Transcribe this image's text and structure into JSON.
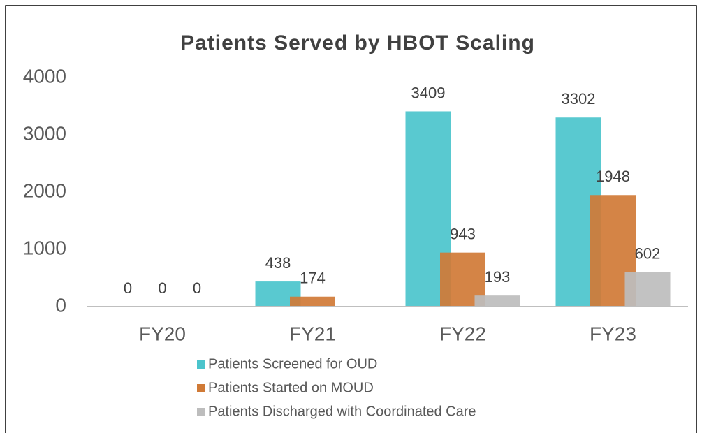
{
  "chart_data": {
    "type": "bar",
    "title": "Patients Served by HBOT Scaling",
    "categories": [
      "FY20",
      "FY21",
      "FY22",
      "FY23"
    ],
    "series": [
      {
        "name": "Patients Screened for OUD",
        "color": "#4bc4cc",
        "values": [
          0,
          438,
          3409,
          3302
        ]
      },
      {
        "name": "Patients Started on MOUD",
        "color": "#d07a36",
        "values": [
          0,
          174,
          943,
          1948
        ]
      },
      {
        "name": "Patients Discharged with Coordinated Care",
        "color": "#bdbdbd",
        "values": [
          0,
          null,
          193,
          602
        ]
      }
    ],
    "ylim": [
      0,
      4000
    ],
    "yticks": [
      0,
      1000,
      2000,
      3000,
      4000
    ],
    "grid": false,
    "legend": "bottom"
  }
}
